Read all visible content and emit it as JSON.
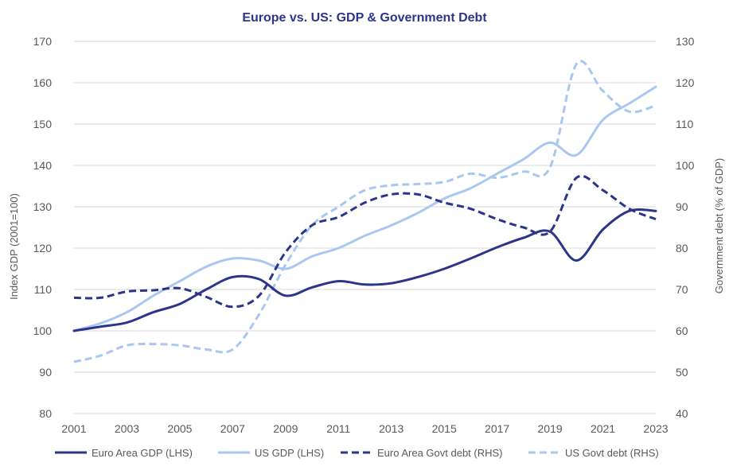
{
  "chart_data": {
    "type": "line",
    "title": "Europe vs. US: GDP & Government Debt",
    "ylabel_left": "Index GDP (2001=100)",
    "ylabel_right": "Government debt (% of GDP)",
    "x": [
      2001,
      2002,
      2003,
      2004,
      2005,
      2006,
      2007,
      2008,
      2009,
      2010,
      2011,
      2012,
      2013,
      2014,
      2015,
      2016,
      2017,
      2018,
      2019,
      2020,
      2021,
      2022,
      2023
    ],
    "x_tick_labels": [
      "2001",
      "2003",
      "2005",
      "2007",
      "2009",
      "2011",
      "2013",
      "2015",
      "2017",
      "2019",
      "2021",
      "2023"
    ],
    "ylim_left": [
      80,
      170
    ],
    "ylim_right": [
      40,
      130
    ],
    "yticks_left": [
      "80",
      "90",
      "100",
      "110",
      "120",
      "130",
      "140",
      "150",
      "160",
      "170"
    ],
    "yticks_right": [
      "40",
      "50",
      "60",
      "70",
      "80",
      "90",
      "100",
      "110",
      "120",
      "130"
    ],
    "grid": "horizontal",
    "legend_position": "bottom",
    "series": [
      {
        "name": "Euro Area GDP (LHS)",
        "axis": "left",
        "color": "#2b3589",
        "dashed": false,
        "values": [
          100,
          101,
          102,
          104.5,
          106.5,
          110,
          113,
          112.5,
          108.5,
          110.5,
          112,
          111.2,
          111.5,
          113,
          115,
          117.5,
          120.2,
          122.5,
          124,
          117,
          124.5,
          129,
          129
        ]
      },
      {
        "name": "US GDP (LHS)",
        "axis": "left",
        "color": "#a9c8f0",
        "dashed": false,
        "values": [
          100,
          101.8,
          104.5,
          108.5,
          112,
          115.5,
          117.5,
          117,
          115,
          118,
          120,
          123,
          125.5,
          128.5,
          132,
          134.5,
          138,
          141.5,
          145.5,
          142.5,
          151,
          155,
          159
        ]
      },
      {
        "name": "Euro Area Govt debt (RHS)",
        "axis": "right",
        "color": "#2b3589",
        "dashed": true,
        "values": [
          68,
          68,
          69.5,
          69.8,
          70.3,
          68.2,
          65.8,
          68.5,
          79,
          85.5,
          87.5,
          91,
          93,
          93,
          91,
          89.5,
          87,
          85,
          84,
          97,
          94,
          89.5,
          87
        ]
      },
      {
        "name": "US Govt debt (RHS)",
        "axis": "right",
        "color": "#a9c8f0",
        "dashed": true,
        "values": [
          52.5,
          54,
          56.5,
          56.8,
          56.5,
          55.5,
          55.5,
          64,
          76,
          85.5,
          90,
          94,
          95.2,
          95.5,
          96,
          98,
          97,
          98.5,
          99.5,
          124.5,
          118,
          113,
          114.5
        ]
      }
    ]
  }
}
